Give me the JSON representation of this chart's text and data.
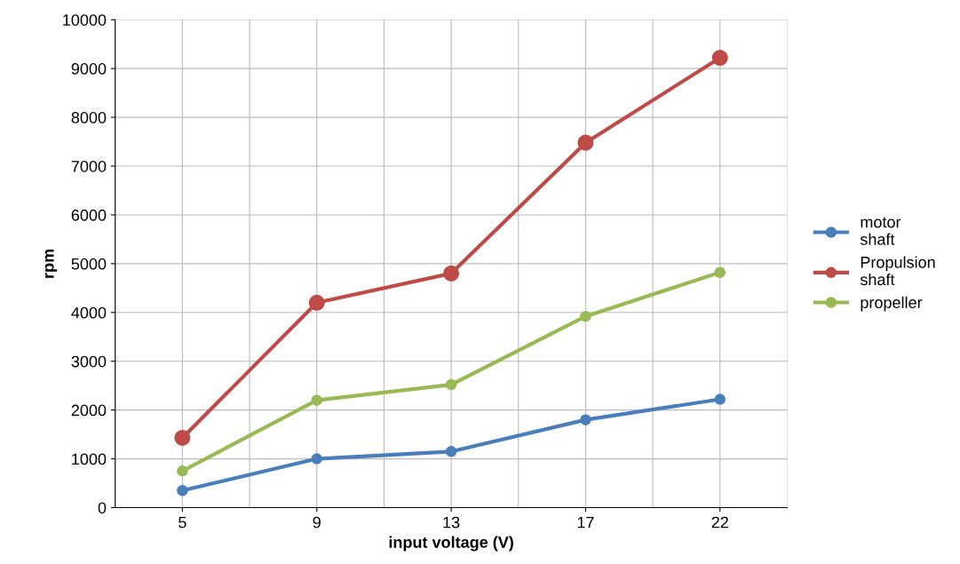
{
  "chart_data": {
    "type": "line",
    "xlabel": "input voltage (V)",
    "ylabel": "rpm",
    "categories": [
      "5",
      "9",
      "13",
      "17",
      "22"
    ],
    "series": [
      {
        "name": "motor shaft",
        "color": "#4a7ebb",
        "values": [
          350,
          1000,
          1150,
          1800,
          2220
        ]
      },
      {
        "name": "Propulsion shaft",
        "color": "#be4b48",
        "values": [
          1430,
          4200,
          4800,
          7480,
          9220
        ]
      },
      {
        "name": "propeller",
        "color": "#98b954",
        "values": [
          750,
          2200,
          2520,
          3920,
          4820
        ]
      }
    ],
    "ylim": [
      0,
      10000
    ],
    "yticks": [
      0,
      1000,
      2000,
      3000,
      4000,
      5000,
      6000,
      7000,
      8000,
      9000,
      10000
    ],
    "grid": true,
    "legend": "right",
    "marker": "circle",
    "line_style": "solid"
  }
}
